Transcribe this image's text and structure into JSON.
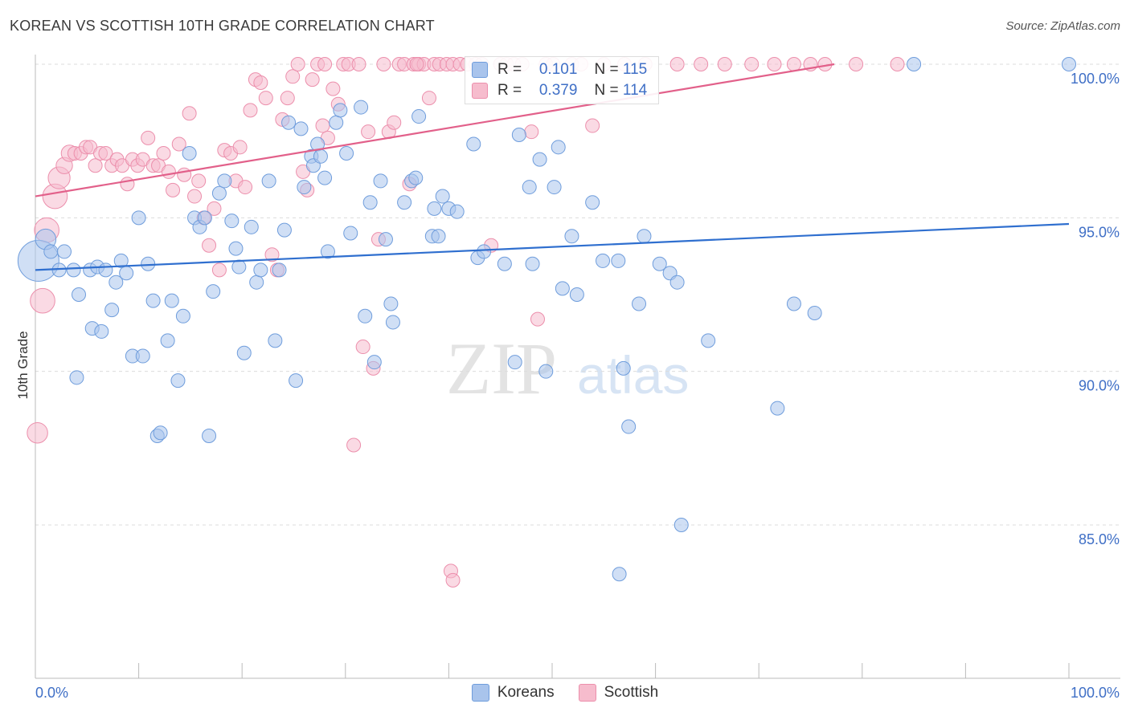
{
  "header": {
    "title": "KOREAN VS SCOTTISH 10TH GRADE CORRELATION CHART",
    "source": "Source: ZipAtlas.com"
  },
  "watermark": {
    "zip": "ZIP",
    "atlas": "atlas"
  },
  "colors": {
    "korean_fill": "#a9c4ec",
    "korean_stroke": "#6f9ddc",
    "korean_line": "#2f6fcf",
    "scottish_fill": "#f6bccd",
    "scottish_stroke": "#ec8fac",
    "scottish_line": "#e2608a",
    "grid": "#dcdcdc",
    "axis_label": "#3f6fc6"
  },
  "legend": {
    "korean": {
      "r_label": "R =",
      "r_value": "0.101",
      "n_label": "N =",
      "n_value": "115"
    },
    "scottish": {
      "r_label": "R =",
      "r_value": "0.379",
      "n_label": "N =",
      "n_value": "114"
    }
  },
  "bottom_legend": {
    "korean": "Koreans",
    "scottish": "Scottish"
  },
  "chart_data": {
    "type": "scatter",
    "title": "KOREAN VS SCOTTISH 10TH GRADE CORRELATION CHART",
    "xlabel": "",
    "ylabel": "10th Grade",
    "xlim": [
      0,
      100
    ],
    "ylim": [
      80.5,
      100.8
    ],
    "x_tick_labels": {
      "min": "0.0%",
      "max": "100.0%"
    },
    "y_ticks": [
      {
        "value": 100,
        "label": "100.0%"
      },
      {
        "value": 95,
        "label": "95.0%"
      },
      {
        "value": 90,
        "label": "90.0%"
      },
      {
        "value": 85,
        "label": "85.0%"
      }
    ],
    "x_tick_count": 11,
    "series": [
      {
        "name": "Koreans",
        "r": 0.101,
        "n": 115,
        "trend": {
          "x": [
            0,
            100
          ],
          "y": [
            93.3,
            94.8
          ]
        },
        "points": [
          [
            0.3,
            93.6,
            3
          ],
          [
            1.0,
            94.3,
            1.5
          ],
          [
            1.5,
            93.9,
            1
          ],
          [
            2.3,
            93.3,
            1
          ],
          [
            2.8,
            93.9,
            1
          ],
          [
            3.7,
            93.3,
            1
          ],
          [
            4.2,
            92.5,
            1
          ],
          [
            4.0,
            89.8,
            1
          ],
          [
            5.3,
            93.3,
            1
          ],
          [
            5.5,
            91.4,
            1
          ],
          [
            6.0,
            93.4,
            1
          ],
          [
            6.4,
            91.3,
            1
          ],
          [
            6.8,
            93.3,
            1
          ],
          [
            7.4,
            92.0,
            1
          ],
          [
            7.8,
            92.9,
            1
          ],
          [
            8.3,
            93.6,
            1
          ],
          [
            8.8,
            93.2,
            1
          ],
          [
            9.4,
            90.5,
            1
          ],
          [
            10.0,
            95.0,
            1
          ],
          [
            10.4,
            90.5,
            1
          ],
          [
            10.9,
            93.5,
            1
          ],
          [
            11.4,
            92.3,
            1
          ],
          [
            11.8,
            87.9,
            1
          ],
          [
            12.1,
            88.0,
            1
          ],
          [
            12.8,
            91.0,
            1
          ],
          [
            13.2,
            92.3,
            1
          ],
          [
            13.8,
            89.7,
            1
          ],
          [
            14.3,
            91.8,
            1
          ],
          [
            14.9,
            97.1,
            1
          ],
          [
            15.4,
            95.0,
            1
          ],
          [
            15.9,
            94.7,
            1
          ],
          [
            16.4,
            95.0,
            1
          ],
          [
            16.8,
            87.9,
            1
          ],
          [
            17.2,
            92.6,
            1
          ],
          [
            17.8,
            95.8,
            1
          ],
          [
            18.3,
            96.2,
            1
          ],
          [
            19.0,
            94.9,
            1
          ],
          [
            19.4,
            94.0,
            1
          ],
          [
            19.7,
            93.4,
            1
          ],
          [
            20.2,
            90.6,
            1
          ],
          [
            20.9,
            94.7,
            1
          ],
          [
            21.4,
            92.9,
            1
          ],
          [
            21.8,
            93.3,
            1
          ],
          [
            22.6,
            96.2,
            1
          ],
          [
            23.2,
            91.0,
            1
          ],
          [
            23.6,
            93.3,
            1
          ],
          [
            24.1,
            94.6,
            1
          ],
          [
            24.5,
            98.1,
            1
          ],
          [
            25.2,
            89.7,
            1
          ],
          [
            25.7,
            97.9,
            1
          ],
          [
            26.0,
            96.0,
            1
          ],
          [
            26.7,
            97.0,
            1
          ],
          [
            26.9,
            96.7,
            1
          ],
          [
            27.3,
            97.4,
            1
          ],
          [
            27.6,
            97.0,
            1
          ],
          [
            28.0,
            96.3,
            1
          ],
          [
            28.3,
            93.9,
            1
          ],
          [
            29.1,
            98.1,
            1
          ],
          [
            29.5,
            98.5,
            1
          ],
          [
            30.1,
            97.1,
            1
          ],
          [
            30.5,
            94.5,
            1
          ],
          [
            31.5,
            98.6,
            1
          ],
          [
            31.9,
            91.8,
            1
          ],
          [
            32.4,
            95.5,
            1
          ],
          [
            32.8,
            90.3,
            1
          ],
          [
            33.4,
            96.2,
            1
          ],
          [
            33.9,
            94.3,
            1
          ],
          [
            34.4,
            92.2,
            1
          ],
          [
            34.6,
            91.6,
            1
          ],
          [
            35.7,
            95.5,
            1
          ],
          [
            36.4,
            96.2,
            1
          ],
          [
            36.8,
            96.3,
            1
          ],
          [
            37.1,
            98.3,
            1
          ],
          [
            38.4,
            94.4,
            1
          ],
          [
            38.6,
            95.3,
            1
          ],
          [
            39.0,
            94.4,
            1
          ],
          [
            39.4,
            95.7,
            1
          ],
          [
            40.0,
            95.3,
            1
          ],
          [
            40.8,
            95.2,
            1
          ],
          [
            42.4,
            97.4,
            1
          ],
          [
            42.8,
            93.7,
            1
          ],
          [
            43.4,
            93.9,
            1
          ],
          [
            45.4,
            93.5,
            1
          ],
          [
            46.4,
            90.3,
            1
          ],
          [
            46.8,
            97.7,
            1
          ],
          [
            47.8,
            96.0,
            1
          ],
          [
            48.1,
            93.5,
            1
          ],
          [
            48.8,
            96.9,
            1
          ],
          [
            49.4,
            90.0,
            1
          ],
          [
            50.2,
            96.0,
            1
          ],
          [
            50.6,
            97.3,
            1
          ],
          [
            51.0,
            92.7,
            1
          ],
          [
            51.9,
            94.4,
            1
          ],
          [
            52.4,
            92.5,
            1
          ],
          [
            53.9,
            95.5,
            1
          ],
          [
            54.9,
            93.6,
            1
          ],
          [
            56.4,
            93.6,
            1
          ],
          [
            56.9,
            90.1,
            1
          ],
          [
            57.4,
            88.2,
            1
          ],
          [
            58.4,
            92.2,
            1
          ],
          [
            58.9,
            94.4,
            1
          ],
          [
            60.4,
            93.5,
            1
          ],
          [
            61.4,
            93.2,
            1
          ],
          [
            62.1,
            92.9,
            1
          ],
          [
            65.1,
            91.0,
            1
          ],
          [
            71.8,
            88.8,
            1
          ],
          [
            73.4,
            92.2,
            1
          ],
          [
            75.4,
            91.9,
            1
          ],
          [
            56.5,
            83.4,
            1
          ],
          [
            62.5,
            85.0,
            1
          ],
          [
            85.0,
            100.0,
            1
          ],
          [
            100.0,
            100.0,
            1
          ]
        ]
      },
      {
        "name": "Scottish",
        "r": 0.379,
        "n": 114,
        "trend": {
          "x": [
            0,
            77.3
          ],
          "y": [
            95.7,
            100.0
          ]
        },
        "points": [
          [
            0.2,
            88.0,
            1.5
          ],
          [
            0.7,
            92.3,
            1.8
          ],
          [
            1.1,
            94.6,
            1.8
          ],
          [
            1.9,
            95.7,
            1.8
          ],
          [
            2.3,
            96.3,
            1.6
          ],
          [
            2.8,
            96.7,
            1.2
          ],
          [
            3.3,
            97.1,
            1.2
          ],
          [
            3.8,
            97.1,
            1
          ],
          [
            4.4,
            97.1,
            1
          ],
          [
            4.9,
            97.3,
            1
          ],
          [
            5.3,
            97.3,
            1
          ],
          [
            5.8,
            96.7,
            1
          ],
          [
            6.3,
            97.1,
            1
          ],
          [
            6.8,
            97.1,
            1
          ],
          [
            7.4,
            96.7,
            1
          ],
          [
            7.9,
            96.9,
            1
          ],
          [
            8.4,
            96.7,
            1
          ],
          [
            8.9,
            96.1,
            1
          ],
          [
            9.4,
            96.9,
            1
          ],
          [
            9.9,
            96.7,
            1
          ],
          [
            10.4,
            96.9,
            1
          ],
          [
            10.9,
            97.6,
            1
          ],
          [
            11.4,
            96.7,
            1
          ],
          [
            11.9,
            96.7,
            1
          ],
          [
            12.4,
            97.1,
            1
          ],
          [
            12.9,
            96.5,
            1
          ],
          [
            13.3,
            95.9,
            1
          ],
          [
            13.9,
            97.4,
            1
          ],
          [
            14.4,
            96.4,
            1
          ],
          [
            14.9,
            98.4,
            1
          ],
          [
            15.4,
            95.7,
            1
          ],
          [
            15.8,
            96.2,
            1
          ],
          [
            16.3,
            95.0,
            1
          ],
          [
            16.8,
            94.1,
            1
          ],
          [
            17.3,
            95.3,
            1
          ],
          [
            17.8,
            93.3,
            1
          ],
          [
            18.3,
            97.2,
            1
          ],
          [
            18.9,
            97.1,
            1
          ],
          [
            19.4,
            96.2,
            1
          ],
          [
            19.8,
            97.3,
            1
          ],
          [
            20.3,
            96.0,
            1
          ],
          [
            20.8,
            98.5,
            1
          ],
          [
            21.3,
            99.5,
            1
          ],
          [
            21.8,
            99.4,
            1
          ],
          [
            22.3,
            98.9,
            1
          ],
          [
            22.9,
            93.8,
            1
          ],
          [
            23.4,
            93.3,
            1
          ],
          [
            23.9,
            98.2,
            1
          ],
          [
            24.4,
            98.9,
            1
          ],
          [
            24.9,
            99.6,
            1
          ],
          [
            25.4,
            100.0,
            1
          ],
          [
            25.9,
            96.5,
            1
          ],
          [
            26.3,
            95.9,
            1
          ],
          [
            26.8,
            99.5,
            1
          ],
          [
            27.3,
            100.0,
            1
          ],
          [
            27.8,
            98.0,
            1
          ],
          [
            28.3,
            97.6,
            1
          ],
          [
            28.8,
            99.2,
            1
          ],
          [
            29.3,
            98.7,
            1
          ],
          [
            29.8,
            100.0,
            1
          ],
          [
            30.3,
            100.0,
            1
          ],
          [
            30.8,
            87.6,
            1
          ],
          [
            31.3,
            100.0,
            1
          ],
          [
            31.7,
            90.8,
            1
          ],
          [
            32.2,
            97.8,
            1
          ],
          [
            32.7,
            90.1,
            1
          ],
          [
            33.2,
            94.3,
            1
          ],
          [
            33.7,
            100.0,
            1
          ],
          [
            34.2,
            97.8,
            1
          ],
          [
            34.7,
            98.1,
            1
          ],
          [
            35.2,
            100.0,
            1
          ],
          [
            35.7,
            100.0,
            1
          ],
          [
            36.2,
            96.1,
            1
          ],
          [
            36.6,
            100.0,
            1
          ],
          [
            37.1,
            100.0,
            1
          ],
          [
            37.6,
            100.0,
            1
          ],
          [
            38.1,
            98.9,
            1
          ],
          [
            38.6,
            100.0,
            1
          ],
          [
            39.1,
            100.0,
            1
          ],
          [
            39.8,
            100.0,
            1
          ],
          [
            40.4,
            100.0,
            1
          ],
          [
            41.1,
            100.0,
            1
          ],
          [
            41.8,
            100.0,
            1
          ],
          [
            42.6,
            100.0,
            1
          ],
          [
            43.2,
            100.0,
            1
          ],
          [
            44.1,
            94.1,
            1
          ],
          [
            45.0,
            100.0,
            1
          ],
          [
            45.6,
            100.0,
            1
          ],
          [
            46.3,
            100.0,
            1
          ],
          [
            47.1,
            100.0,
            1
          ],
          [
            48.0,
            97.8,
            1
          ],
          [
            48.6,
            91.7,
            1
          ],
          [
            49.4,
            100.0,
            1
          ],
          [
            50.1,
            100.0,
            1
          ],
          [
            51.9,
            100.0,
            1
          ],
          [
            52.8,
            100.0,
            1
          ],
          [
            53.9,
            98.0,
            1
          ],
          [
            55.0,
            100.0,
            1
          ],
          [
            57.0,
            100.0,
            1
          ],
          [
            59.0,
            100.0,
            1
          ],
          [
            62.1,
            100.0,
            1
          ],
          [
            64.4,
            100.0,
            1
          ],
          [
            66.7,
            100.0,
            1
          ],
          [
            69.3,
            100.0,
            1
          ],
          [
            71.5,
            100.0,
            1
          ],
          [
            73.4,
            100.0,
            1
          ],
          [
            75.0,
            100.0,
            1
          ],
          [
            76.4,
            100.0,
            1
          ],
          [
            79.4,
            100.0,
            1
          ],
          [
            83.4,
            100.0,
            1
          ],
          [
            40.2,
            83.5,
            1
          ],
          [
            40.4,
            83.2,
            1
          ],
          [
            28.0,
            100.0,
            1
          ],
          [
            36.9,
            100.0,
            1
          ]
        ]
      }
    ]
  }
}
